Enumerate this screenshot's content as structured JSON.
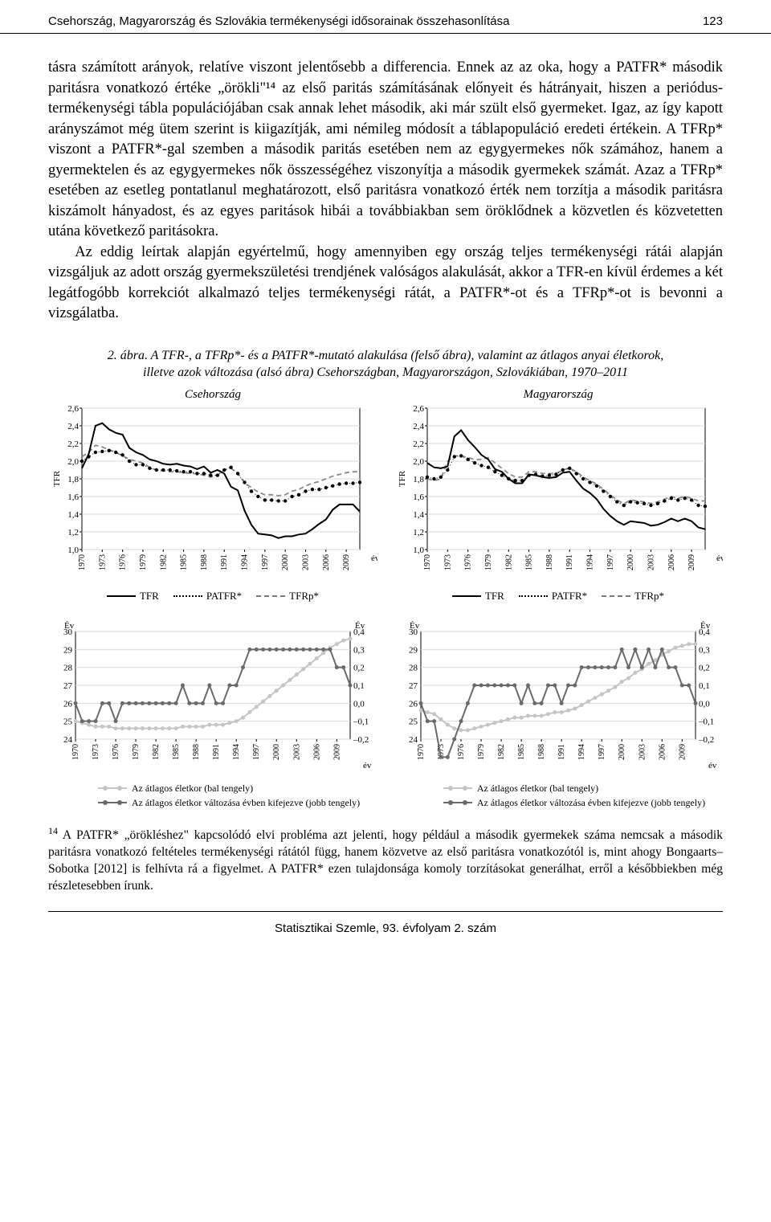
{
  "header": {
    "title": "Csehország, Magyarország és Szlovákia termékenységi idősorainak összehasonlítása",
    "page_number": "123"
  },
  "body": {
    "p1": "tásra számított arányok, relatíve viszont jelentősebb a differencia. Ennek az az oka, hogy a PATFR* második paritásra vonatkozó értéke „örökli\"¹⁴ az első paritás számításának előnyeit és hátrányait, hiszen a periódus-termékenységi tábla populációjában csak annak lehet második, aki már szült első gyermeket. Igaz, az így kapott arányszámot még ütem szerint is kiigazítják, ami némileg módosít a táblapopuláció eredeti értékein. A TFRp* viszont a PATFR*-gal szemben a második paritás esetében nem az egygyermekes nők számához, hanem a gyermektelen és az egygyermekes nők összességéhez viszonyítja a második gyermekek számát. Azaz a TFRp* esetében az esetleg pontatlanul meghatározott, első paritásra vonatkozó érték nem torzítja a második paritásra kiszámolt hányadost, és az egyes paritások hibái a továbbiakban sem öröklődnek a közvetlen és közvetetten utána következő paritásokra.",
    "p2": "Az eddig leírtak alapján egyértelmű, hogy amennyiben egy ország teljes termékenységi rátái alapján vizsgáljuk az adott ország gyermekszületési trendjének valóságos alakulását, akkor a TFR-en kívül érdemes a két legátfogóbb korrekciót alkalmazó teljes termékenységi rátát, a PATFR*-ot és a TFRp*-ot is bevonni a vizsgálatba."
  },
  "figure": {
    "caption_line1": "2. ábra. A TFR-, a TFRp*- és a PATFR*-mutató alakulása (felső ábra), valamint az átlagos anyai életkorok,",
    "caption_line2": "illetve azok változása (alsó ábra) Csehországban, Magyarországon, Szlovákiában, 1970–2011",
    "countries": [
      "Csehország",
      "Magyarország"
    ],
    "top": {
      "ylabel": "TFR",
      "xlabel": "év",
      "ylim": [
        1.0,
        2.6
      ],
      "yticks": [
        "1,0",
        "1,2",
        "1,4",
        "1,6",
        "1,8",
        "2,0",
        "2,2",
        "2,4",
        "2,6"
      ],
      "xticks": [
        "1970",
        "1973",
        "1976",
        "1979",
        "1982",
        "1985",
        "1988",
        "1991",
        "1994",
        "1997",
        "2000",
        "2003",
        "2006",
        "2009"
      ],
      "series_labels": [
        "TFR",
        "PATFR*",
        "TFRp*"
      ],
      "colors": {
        "tfr": "#000000",
        "patfr": "#000000",
        "tfrp": "#8a8a8a",
        "grid": "#d9d9d9",
        "bg": "#ffffff"
      },
      "cz": {
        "tfr": [
          1.92,
          2.08,
          2.4,
          2.43,
          2.36,
          2.32,
          2.3,
          2.15,
          2.1,
          2.07,
          2.02,
          2.0,
          1.97,
          1.96,
          1.97,
          1.95,
          1.94,
          1.91,
          1.94,
          1.87,
          1.9,
          1.86,
          1.71,
          1.67,
          1.44,
          1.28,
          1.18,
          1.17,
          1.16,
          1.13,
          1.15,
          1.15,
          1.17,
          1.18,
          1.23,
          1.29,
          1.34,
          1.45,
          1.51,
          1.51,
          1.51,
          1.43
        ],
        "patfr": [
          2.0,
          2.05,
          2.1,
          2.11,
          2.12,
          2.1,
          2.07,
          2.0,
          1.96,
          1.96,
          1.92,
          1.9,
          1.9,
          1.9,
          1.89,
          1.88,
          1.88,
          1.86,
          1.86,
          1.84,
          1.84,
          1.9,
          1.93,
          1.86,
          1.76,
          1.66,
          1.6,
          1.56,
          1.56,
          1.55,
          1.55,
          1.6,
          1.62,
          1.66,
          1.68,
          1.68,
          1.7,
          1.72,
          1.74,
          1.75,
          1.75,
          1.76
        ],
        "tfrp": [
          2.05,
          2.1,
          2.18,
          2.16,
          2.13,
          2.1,
          2.06,
          2.02,
          2.0,
          1.98,
          1.93,
          1.9,
          1.89,
          1.88,
          1.88,
          1.87,
          1.86,
          1.86,
          1.84,
          1.82,
          1.84,
          1.9,
          1.92,
          1.86,
          1.76,
          1.7,
          1.65,
          1.62,
          1.62,
          1.61,
          1.62,
          1.66,
          1.68,
          1.72,
          1.75,
          1.77,
          1.8,
          1.83,
          1.85,
          1.87,
          1.88,
          1.88
        ]
      },
      "hu": {
        "tfr": [
          1.98,
          1.93,
          1.92,
          1.94,
          2.28,
          2.35,
          2.24,
          2.16,
          2.07,
          2.02,
          1.91,
          1.88,
          1.8,
          1.75,
          1.75,
          1.85,
          1.84,
          1.82,
          1.81,
          1.82,
          1.87,
          1.88,
          1.78,
          1.69,
          1.64,
          1.57,
          1.46,
          1.38,
          1.32,
          1.28,
          1.32,
          1.31,
          1.3,
          1.27,
          1.28,
          1.31,
          1.35,
          1.32,
          1.35,
          1.32,
          1.25,
          1.23
        ],
        "patfr": [
          1.82,
          1.8,
          1.82,
          1.9,
          2.05,
          2.06,
          2.02,
          1.98,
          1.95,
          1.93,
          1.88,
          1.84,
          1.8,
          1.78,
          1.78,
          1.84,
          1.85,
          1.83,
          1.84,
          1.85,
          1.9,
          1.92,
          1.86,
          1.8,
          1.76,
          1.72,
          1.66,
          1.6,
          1.54,
          1.5,
          1.54,
          1.53,
          1.52,
          1.5,
          1.52,
          1.55,
          1.58,
          1.56,
          1.58,
          1.56,
          1.5,
          1.49
        ],
        "tfrp": [
          1.8,
          1.78,
          1.8,
          2.0,
          2.06,
          2.06,
          2.04,
          2.02,
          2.02,
          2.04,
          1.98,
          1.92,
          1.86,
          1.82,
          1.82,
          1.88,
          1.88,
          1.86,
          1.86,
          1.86,
          1.9,
          1.92,
          1.88,
          1.82,
          1.78,
          1.74,
          1.68,
          1.62,
          1.56,
          1.52,
          1.56,
          1.55,
          1.54,
          1.52,
          1.54,
          1.57,
          1.6,
          1.58,
          1.6,
          1.58,
          1.55,
          1.55
        ]
      }
    },
    "bottom": {
      "ylabel_left": "Év",
      "ylabel_right": "Év",
      "xlabel": "év",
      "ylim_left": [
        24,
        30
      ],
      "ylim_right": [
        -0.2,
        0.4
      ],
      "yticks_left": [
        "24",
        "25",
        "26",
        "27",
        "28",
        "29",
        "30"
      ],
      "yticks_right": [
        "–0,2",
        "–0,1",
        "0,0",
        "0,1",
        "0,2",
        "0,3",
        "0,4"
      ],
      "xticks": [
        "1970",
        "1973",
        "1976",
        "1979",
        "1982",
        "1985",
        "1988",
        "1991",
        "1994",
        "1997",
        "2000",
        "2003",
        "2006",
        "2009"
      ],
      "legend1": "Az átlagos életkor (bal tengely)",
      "legend2": "Az átlagos életkor változása évben kifejezve (jobb tengely)",
      "colors": {
        "age": "#c5c5c5",
        "delta": "#6a6a6a",
        "grid": "#d9d9d9"
      },
      "cz": {
        "age": [
          25.0,
          24.9,
          24.8,
          24.7,
          24.7,
          24.7,
          24.6,
          24.6,
          24.6,
          24.6,
          24.6,
          24.6,
          24.6,
          24.6,
          24.6,
          24.6,
          24.7,
          24.7,
          24.7,
          24.7,
          24.8,
          24.8,
          24.8,
          24.9,
          25.0,
          25.2,
          25.5,
          25.8,
          26.1,
          26.4,
          26.7,
          27.0,
          27.3,
          27.6,
          27.9,
          28.2,
          28.5,
          28.8,
          29.1,
          29.3,
          29.5,
          29.6
        ],
        "delta": [
          0.0,
          -0.1,
          -0.1,
          -0.1,
          0.0,
          0.0,
          -0.1,
          0.0,
          0.0,
          0.0,
          0.0,
          0.0,
          0.0,
          0.0,
          0.0,
          0.0,
          0.1,
          0.0,
          0.0,
          0.0,
          0.1,
          0.0,
          0.0,
          0.1,
          0.1,
          0.2,
          0.3,
          0.3,
          0.3,
          0.3,
          0.3,
          0.3,
          0.3,
          0.3,
          0.3,
          0.3,
          0.3,
          0.3,
          0.3,
          0.2,
          0.2,
          0.1
        ]
      },
      "hu": {
        "age": [
          25.6,
          25.5,
          25.4,
          25.1,
          24.8,
          24.6,
          24.5,
          24.5,
          24.6,
          24.7,
          24.8,
          24.9,
          25.0,
          25.1,
          25.2,
          25.2,
          25.3,
          25.3,
          25.3,
          25.4,
          25.5,
          25.5,
          25.6,
          25.7,
          25.9,
          26.1,
          26.3,
          26.5,
          26.7,
          26.9,
          27.2,
          27.4,
          27.7,
          27.9,
          28.2,
          28.4,
          28.7,
          28.9,
          29.1,
          29.2,
          29.3,
          29.3
        ],
        "delta": [
          0.0,
          -0.1,
          -0.1,
          -0.3,
          -0.3,
          -0.2,
          -0.1,
          0.0,
          0.1,
          0.1,
          0.1,
          0.1,
          0.1,
          0.1,
          0.1,
          0.0,
          0.1,
          0.0,
          0.0,
          0.1,
          0.1,
          0.0,
          0.1,
          0.1,
          0.2,
          0.2,
          0.2,
          0.2,
          0.2,
          0.2,
          0.3,
          0.2,
          0.3,
          0.2,
          0.3,
          0.2,
          0.3,
          0.2,
          0.2,
          0.1,
          0.1,
          0.0
        ]
      }
    }
  },
  "footnote": {
    "num": "14",
    "text": " A PATFR* „örökléshez\" kapcsolódó elvi probléma azt jelenti, hogy például a második gyermekek száma nemcsak a második paritásra vonatkozó feltételes termékenységi rátától függ, hanem közvetve az első paritásra vonatkozótól is, mint ahogy Bongaarts–Sobotka [2012] is felhívta rá a figyelmet. A PATFR* ezen tulajdonsága komoly torzításokat generálhat, erről a későbbiekben még részletesebben írunk."
  },
  "footer": {
    "text": "Statisztikai Szemle, 93. évfolyam 2. szám"
  }
}
